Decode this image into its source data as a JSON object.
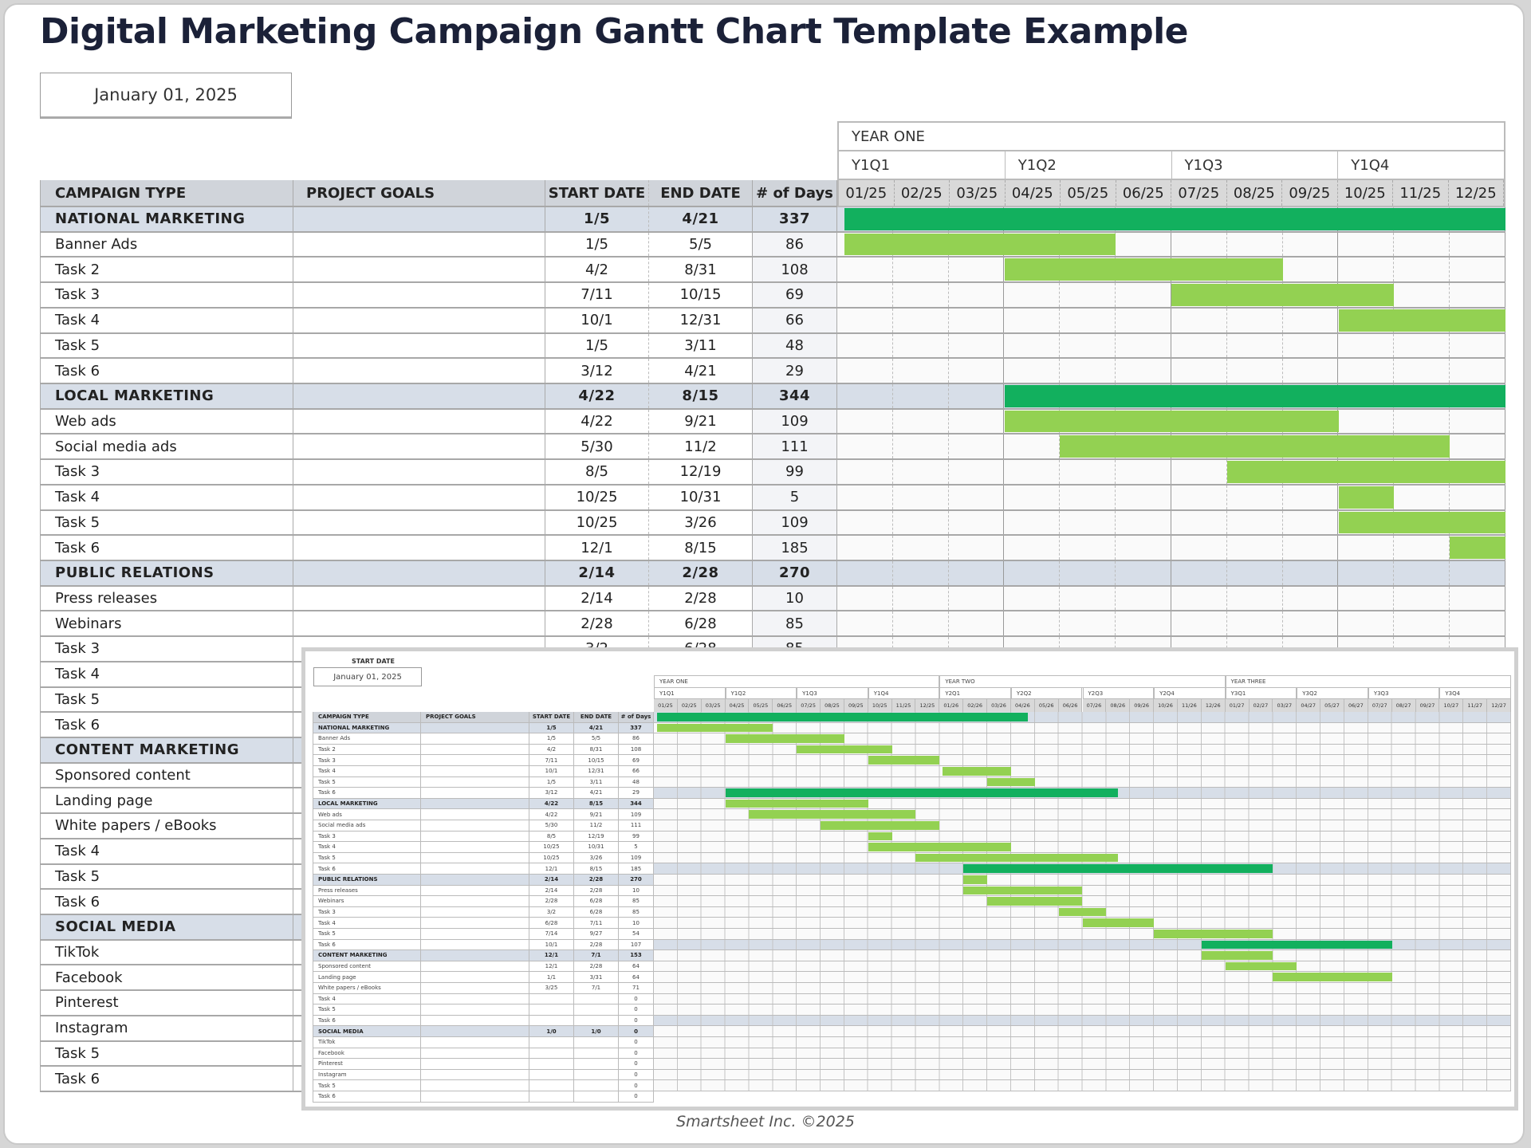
{
  "title": "Digital Marketing Campaign Gantt Chart Template Example",
  "start_date": "January 01, 2025",
  "table": {
    "headers": [
      "CAMPAIGN TYPE",
      "PROJECT GOALS",
      "START DATE",
      "END DATE",
      "# of Days"
    ],
    "rows": [
      {
        "type": "group",
        "name": "NATIONAL MARKETING",
        "goals": "",
        "start": "1/5",
        "end": "4/21",
        "days": "337"
      },
      {
        "type": "task",
        "name": "Banner Ads",
        "goals": "",
        "start": "1/5",
        "end": "5/5",
        "days": "86"
      },
      {
        "type": "task",
        "name": "Task 2",
        "goals": "",
        "start": "4/2",
        "end": "8/31",
        "days": "108"
      },
      {
        "type": "task",
        "name": "Task 3",
        "goals": "",
        "start": "7/11",
        "end": "10/15",
        "days": "69"
      },
      {
        "type": "task",
        "name": "Task 4",
        "goals": "",
        "start": "10/1",
        "end": "12/31",
        "days": "66"
      },
      {
        "type": "task",
        "name": "Task 5",
        "goals": "",
        "start": "1/5",
        "end": "3/11",
        "days": "48"
      },
      {
        "type": "task",
        "name": "Task 6",
        "goals": "",
        "start": "3/12",
        "end": "4/21",
        "days": "29"
      },
      {
        "type": "group",
        "name": "LOCAL MARKETING",
        "goals": "",
        "start": "4/22",
        "end": "8/15",
        "days": "344"
      },
      {
        "type": "task",
        "name": "Web ads",
        "goals": "",
        "start": "4/22",
        "end": "9/21",
        "days": "109"
      },
      {
        "type": "task",
        "name": "Social media ads",
        "goals": "",
        "start": "5/30",
        "end": "11/2",
        "days": "111"
      },
      {
        "type": "task",
        "name": "Task 3",
        "goals": "",
        "start": "8/5",
        "end": "12/19",
        "days": "99"
      },
      {
        "type": "task",
        "name": "Task 4",
        "goals": "",
        "start": "10/25",
        "end": "10/31",
        "days": "5"
      },
      {
        "type": "task",
        "name": "Task 5",
        "goals": "",
        "start": "10/25",
        "end": "3/26",
        "days": "109"
      },
      {
        "type": "task",
        "name": "Task 6",
        "goals": "",
        "start": "12/1",
        "end": "8/15",
        "days": "185"
      },
      {
        "type": "group",
        "name": "PUBLIC RELATIONS",
        "goals": "",
        "start": "2/14",
        "end": "2/28",
        "days": "270"
      },
      {
        "type": "task",
        "name": "Press releases",
        "goals": "",
        "start": "2/14",
        "end": "2/28",
        "days": "10"
      },
      {
        "type": "task",
        "name": "Webinars",
        "goals": "",
        "start": "2/28",
        "end": "6/28",
        "days": "85"
      },
      {
        "type": "task",
        "name": "Task 3",
        "goals": "",
        "start": "3/2",
        "end": "6/28",
        "days": "85"
      },
      {
        "type": "task",
        "name": "Task 4",
        "goals": "",
        "start": "6/28",
        "end": "7/11",
        "days": "10"
      },
      {
        "type": "task",
        "name": "Task 5",
        "goals": "",
        "start": "7/14",
        "end": "9/27",
        "days": "54"
      },
      {
        "type": "task",
        "name": "Task 6",
        "goals": "",
        "start": "10/1",
        "end": "2/28",
        "days": "107"
      },
      {
        "type": "group",
        "name": "CONTENT MARKETING",
        "goals": "",
        "start": "12/1",
        "end": "7/1",
        "days": "153"
      },
      {
        "type": "task",
        "name": "Sponsored content",
        "goals": "",
        "start": "12/1",
        "end": "2/28",
        "days": "64"
      },
      {
        "type": "task",
        "name": "Landing page",
        "goals": "",
        "start": "1/1",
        "end": "3/31",
        "days": "64"
      },
      {
        "type": "task",
        "name": "White papers / eBooks",
        "goals": "",
        "start": "3/25",
        "end": "7/1",
        "days": "71"
      },
      {
        "type": "task",
        "name": "Task 4",
        "goals": "",
        "start": "",
        "end": "",
        "days": "0"
      },
      {
        "type": "task",
        "name": "Task 5",
        "goals": "",
        "start": "",
        "end": "",
        "days": "0"
      },
      {
        "type": "task",
        "name": "Task 6",
        "goals": "",
        "start": "",
        "end": "",
        "days": "0"
      },
      {
        "type": "group",
        "name": "SOCIAL MEDIA",
        "goals": "",
        "start": "1/0",
        "end": "1/0",
        "days": "0"
      },
      {
        "type": "task",
        "name": "TikTok",
        "goals": "",
        "start": "",
        "end": "",
        "days": "0"
      },
      {
        "type": "task",
        "name": "Facebook",
        "goals": "",
        "start": "",
        "end": "",
        "days": "0"
      },
      {
        "type": "task",
        "name": "Pinterest",
        "goals": "",
        "start": "",
        "end": "",
        "days": "0"
      },
      {
        "type": "task",
        "name": "Instagram",
        "goals": "",
        "start": "",
        "end": "",
        "days": "0"
      },
      {
        "type": "task",
        "name": "Task 5",
        "goals": "",
        "start": "",
        "end": "",
        "days": "0"
      },
      {
        "type": "task",
        "name": "Task 6",
        "goals": "",
        "start": "",
        "end": "",
        "days": "0"
      }
    ]
  },
  "timeline": {
    "year": "YEAR ONE",
    "quarters": [
      "Y1Q1",
      "Y1Q2",
      "Y1Q3",
      "Y1Q4"
    ],
    "months": [
      "01/25",
      "02/25",
      "03/25",
      "04/25",
      "05/25",
      "06/25",
      "07/25",
      "08/25",
      "09/25",
      "10/25",
      "11/25",
      "12/25"
    ]
  },
  "inset": {
    "start_date_label": "START DATE",
    "start_date": "January 01, 2025",
    "years": [
      "YEAR ONE",
      "YEAR TWO",
      "YEAR THREE"
    ],
    "quarters": [
      "Y1Q1",
      "Y1Q2",
      "Y1Q3",
      "Y1Q4",
      "Y2Q1",
      "Y2Q2",
      "Y2Q3",
      "Y2Q4",
      "Y3Q1",
      "Y3Q2",
      "Y3Q3",
      "Y3Q4"
    ],
    "months": [
      "01/25",
      "02/25",
      "03/25",
      "04/25",
      "05/25",
      "06/25",
      "07/25",
      "08/25",
      "09/25",
      "10/25",
      "11/25",
      "12/25",
      "01/26",
      "02/26",
      "03/26",
      "04/26",
      "05/26",
      "06/26",
      "07/26",
      "08/26",
      "09/26",
      "10/26",
      "11/26",
      "12/26",
      "01/27",
      "02/27",
      "03/27",
      "04/27",
      "05/27",
      "06/27",
      "07/27",
      "08/27",
      "09/27",
      "10/27",
      "11/27",
      "12/27"
    ]
  },
  "footer": "Smartsheet Inc. ©2025",
  "colors": {
    "summary_bar": "#12b05e",
    "task_bar": "#93d152",
    "group_row": "#d7dee8",
    "header_row": "#d0d4da",
    "title": "#1b2138"
  },
  "chart_data": {
    "type": "gantt",
    "title": "Digital Marketing Campaign Gantt Chart Template Example",
    "start_date": "January 01, 2025",
    "x_unit": "month index from 01/25 (0 = Jan 2025)",
    "visible_range_main": [
      0,
      12
    ],
    "visible_range_inset": [
      0,
      36
    ],
    "bars": [
      {
        "row": 0,
        "label": "NATIONAL MARKETING",
        "summary": true,
        "start": 0.13,
        "end": 15.7
      },
      {
        "row": 1,
        "label": "Banner Ads",
        "start": 0.13,
        "end": 5.0
      },
      {
        "row": 2,
        "label": "Task 2",
        "start": 3.0,
        "end": 8.0
      },
      {
        "row": 3,
        "label": "Task 3",
        "start": 6.0,
        "end": 10.0
      },
      {
        "row": 4,
        "label": "Task 4",
        "start": 9.0,
        "end": 12.0
      },
      {
        "row": 5,
        "label": "Task 5",
        "start": 12.13,
        "end": 15.0
      },
      {
        "row": 6,
        "label": "Task 6",
        "start": 14.0,
        "end": 16.0
      },
      {
        "row": 7,
        "label": "LOCAL MARKETING",
        "summary": true,
        "start": 3.0,
        "end": 19.5
      },
      {
        "row": 8,
        "label": "Web ads",
        "start": 3.0,
        "end": 9.0
      },
      {
        "row": 9,
        "label": "Social media ads",
        "start": 4.0,
        "end": 11.0
      },
      {
        "row": 10,
        "label": "Task 3",
        "start": 7.0,
        "end": 12.0
      },
      {
        "row": 11,
        "label": "Task 4",
        "start": 9.0,
        "end": 10.0
      },
      {
        "row": 12,
        "label": "Task 5",
        "start": 9.0,
        "end": 15.0
      },
      {
        "row": 13,
        "label": "Task 6",
        "start": 11.0,
        "end": 19.5
      },
      {
        "row": 14,
        "label": "PUBLIC RELATIONS",
        "summary": true,
        "start": 13.0,
        "end": 26.0
      },
      {
        "row": 15,
        "label": "Press releases",
        "start": 13.0,
        "end": 14.0
      },
      {
        "row": 16,
        "label": "Webinars",
        "start": 13.0,
        "end": 18.0
      },
      {
        "row": 17,
        "label": "Task 3",
        "start": 14.0,
        "end": 18.0
      },
      {
        "row": 18,
        "label": "Task 4",
        "start": 17.0,
        "end": 19.0
      },
      {
        "row": 19,
        "label": "Task 5",
        "start": 18.0,
        "end": 21.0
      },
      {
        "row": 20,
        "label": "Task 6",
        "start": 21.0,
        "end": 26.0
      },
      {
        "row": 21,
        "label": "CONTENT MARKETING",
        "summary": true,
        "start": 23.0,
        "end": 31.0
      },
      {
        "row": 22,
        "label": "Sponsored content",
        "start": 23.0,
        "end": 26.0
      },
      {
        "row": 23,
        "label": "Landing page",
        "start": 24.0,
        "end": 27.0
      },
      {
        "row": 24,
        "label": "White papers / eBooks",
        "start": 26.0,
        "end": 31.0
      }
    ]
  }
}
